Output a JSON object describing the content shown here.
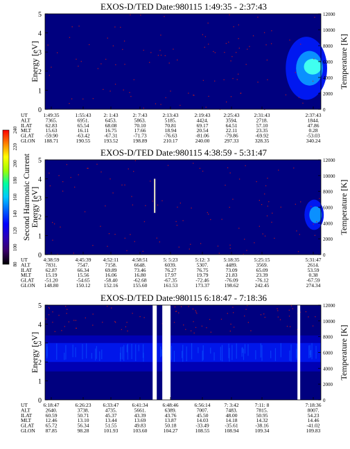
{
  "colors": {
    "background": "#00007f",
    "band_dark": "#0000b4",
    "band_mid": "#0018f0",
    "band_bright": "#0c5cff",
    "speckle": "#cc1a1a",
    "gap": "#ffffff",
    "hot": "#40fff0"
  },
  "colorbar": {
    "label": "Second Harmonic Current",
    "ticks": [
      "240",
      "220",
      "200",
      "180",
      "160",
      "140",
      "120",
      "100",
      "80"
    ],
    "colors": [
      "#000000",
      "#3a006a",
      "#2a00b8",
      "#0000ff",
      "#0060ff",
      "#00c8ff",
      "#00ffa0",
      "#a0ff00",
      "#ffff00",
      "#ff8000",
      "#ff0000"
    ]
  },
  "table_labels": [
    "UT",
    "ALT",
    "ILAT",
    "MLT",
    "GLAT",
    "GLON"
  ],
  "panels": [
    {
      "title": "EXOS-D/TED   Date:980115  1:49:35 - 2:37:43",
      "ylabel": "Energy [eV]",
      "ylabel_right": "Temperature [K]",
      "yticks": [
        "5",
        "4",
        "3",
        "2",
        "1",
        "0"
      ],
      "yticks_right": [
        "12000",
        "10000",
        "8000",
        "6000",
        "4000",
        "2000",
        "0"
      ],
      "columns": [
        [
          "1:49:35",
          "7365.",
          "62.83",
          "15.63",
          "-59.90",
          "188.71"
        ],
        [
          "1:55:43",
          "6951.",
          "65.54",
          "16.11",
          "-63.42",
          "190.55"
        ],
        [
          "2: 1:43",
          "6453.",
          "68.08",
          "16.75",
          "-67.31",
          "193.52"
        ],
        [
          "2: 7:43",
          "5863.",
          "70.10",
          "17.66",
          "-71.73",
          "198.89"
        ],
        [
          "2:13:43",
          "5185.",
          "70.81",
          "18.94",
          "-76.63",
          "210.17"
        ],
        [
          "2:19:43",
          "4424.",
          "69.17",
          "20.54",
          "-81.06",
          "240.00"
        ],
        [
          "2:25:43",
          "3594.",
          "64.51",
          "22.11",
          "-79.86",
          "297.33"
        ],
        [
          "2:31:43",
          "2718.",
          "57.10",
          "23.35",
          "-69.92",
          "328.35"
        ],
        [
          "2:37:43",
          "1844.",
          "47.86",
          "0.28",
          "-53.03",
          "340.24"
        ]
      ]
    },
    {
      "title": "EXOS-D/TED   Date:980115  4:38:59 - 5:31:47",
      "ylabel": "Energy [eV]",
      "ylabel_right": "Temperature [K]",
      "yticks": [
        "5",
        "4",
        "3",
        "2",
        "1",
        "0"
      ],
      "yticks_right": [
        "12000",
        "10000",
        "8000",
        "6000",
        "4000",
        "2000",
        "0"
      ],
      "columns": [
        [
          "4:38:59",
          "7831.",
          "62.87",
          "15.19",
          "-51.20",
          "148.80"
        ],
        [
          "4:45:39",
          "7547.",
          "66.34",
          "15.56",
          "-54.65",
          "150.12"
        ],
        [
          "4:52:11",
          "7158.",
          "69.89",
          "16.06",
          "-58.40",
          "152.16"
        ],
        [
          "4:58:51",
          "6648.",
          "73.46",
          "16.80",
          "-62.68",
          "155.60"
        ],
        [
          "5: 5:23",
          "6039.",
          "76.27",
          "17.97",
          "-67.35",
          "161.53"
        ],
        [
          "5:12: 3",
          "5307.",
          "76.75",
          "19.79",
          "-72.46",
          "173.37"
        ],
        [
          "5:18:35",
          "4489.",
          "73.09",
          "21.83",
          "-76.09",
          "198.62"
        ],
        [
          "5:25:15",
          "3569.",
          "65.09",
          "23.39",
          "-76.12",
          "242.45"
        ],
        [
          "5:31:47",
          "2614.",
          "53.59",
          "0.38",
          "-67.59",
          "274.34"
        ]
      ]
    },
    {
      "title": "EXOS-D/TED   Date:980115  6:18:47 - 7:18:36",
      "ylabel": "Energy [eV]",
      "ylabel_right": "Temperature [K]",
      "yticks": [
        "5",
        "4",
        "3",
        "2",
        "1",
        "0"
      ],
      "yticks_right": [
        "12000",
        "10000",
        "8000",
        "6000",
        "4000",
        "2000",
        "0"
      ],
      "columns": [
        [
          "6:18:47",
          "2640.",
          "60.59",
          "12.46",
          "65.72",
          "87.85"
        ],
        [
          "6:26:23",
          "3738.",
          "50.71",
          "13.10",
          "56.34",
          "98.28"
        ],
        [
          "6:33:47",
          "4735.",
          "45.37",
          "13.44",
          "51.55",
          "101.93"
        ],
        [
          "6:41:34",
          "5661.",
          "43.39",
          "13.69",
          "49.83",
          "103.60"
        ],
        [
          "6:48:46",
          "6389.",
          "43.76",
          "13.87",
          "50.18",
          "104.27"
        ],
        [
          "6:56:14",
          "7007.",
          "45.50",
          "14.03",
          "-33.49",
          "108.55"
        ],
        [
          "7: 3:42",
          "7483.",
          "48.00",
          "14.18",
          "-35.61",
          "108.94"
        ],
        [
          "7:11: 8",
          "7815.",
          "50.95",
          "14.32",
          "-38.16",
          "109.34"
        ],
        [
          "7:18:36",
          "8007.",
          "54.23",
          "14.46",
          "-41.02",
          "109.83"
        ]
      ]
    }
  ],
  "chart_data": [
    {
      "type": "heatmap",
      "title": "EXOS-D/TED   Date:980115  1:49:35 - 2:37:43",
      "ylabel": "Energy [eV]",
      "ylabel_right": "Temperature [K]",
      "ylim": [
        0,
        5
      ],
      "ylim_right": [
        0,
        12000
      ],
      "x_range": [
        "1:49:35",
        "2:37:43"
      ],
      "features": [
        {
          "kind": "background",
          "level": "low",
          "t_start": 0.0,
          "t_end": 1.0,
          "e_min": 0.0,
          "e_max": 5.0
        },
        {
          "kind": "enhancement",
          "level": "high",
          "t_start": 0.85,
          "t_end": 1.0,
          "e_min": 0.5,
          "e_max": 3.8
        }
      ]
    },
    {
      "type": "heatmap",
      "title": "EXOS-D/TED   Date:980115  4:38:59 - 5:31:47",
      "ylabel": "Energy [eV]",
      "ylabel_right": "Temperature [K]",
      "ylim": [
        0,
        5
      ],
      "ylim_right": [
        0,
        12000
      ],
      "x_range": [
        "4:38:59",
        "5:31:47"
      ],
      "features": [
        {
          "kind": "background",
          "level": "low",
          "t_start": 0.0,
          "t_end": 1.0,
          "e_min": 0.0,
          "e_max": 5.0
        },
        {
          "kind": "spike",
          "level": "high",
          "t_start": 0.395,
          "t_end": 0.4,
          "e_min": 2.2,
          "e_max": 4.0
        },
        {
          "kind": "enhancement",
          "level": "mid",
          "t_start": 0.93,
          "t_end": 1.0,
          "e_min": 1.3,
          "e_max": 2.9
        }
      ]
    },
    {
      "type": "heatmap",
      "title": "EXOS-D/TED   Date:980115  6:18:47 - 7:18:36",
      "ylabel": "Energy [eV]",
      "ylabel_right": "Temperature [K]",
      "ylim": [
        0,
        5
      ],
      "ylim_right": [
        0,
        12000
      ],
      "x_range": [
        "6:18:47",
        "7:18:36"
      ],
      "data_gaps": [
        [
          0.39,
          0.405
        ],
        [
          0.425,
          0.455
        ],
        [
          0.915,
          0.925
        ]
      ],
      "features": [
        {
          "kind": "background",
          "level": "low",
          "t_start": 0.0,
          "t_end": 1.0,
          "e_min": 0.0,
          "e_max": 5.0
        },
        {
          "kind": "band",
          "level": "mid",
          "t_start": 0.0,
          "t_end": 1.0,
          "e_min": 1.5,
          "e_max": 3.4
        },
        {
          "kind": "band",
          "level": "high",
          "t_start": 0.0,
          "t_end": 1.0,
          "e_min": 2.0,
          "e_max": 3.0
        }
      ]
    }
  ]
}
